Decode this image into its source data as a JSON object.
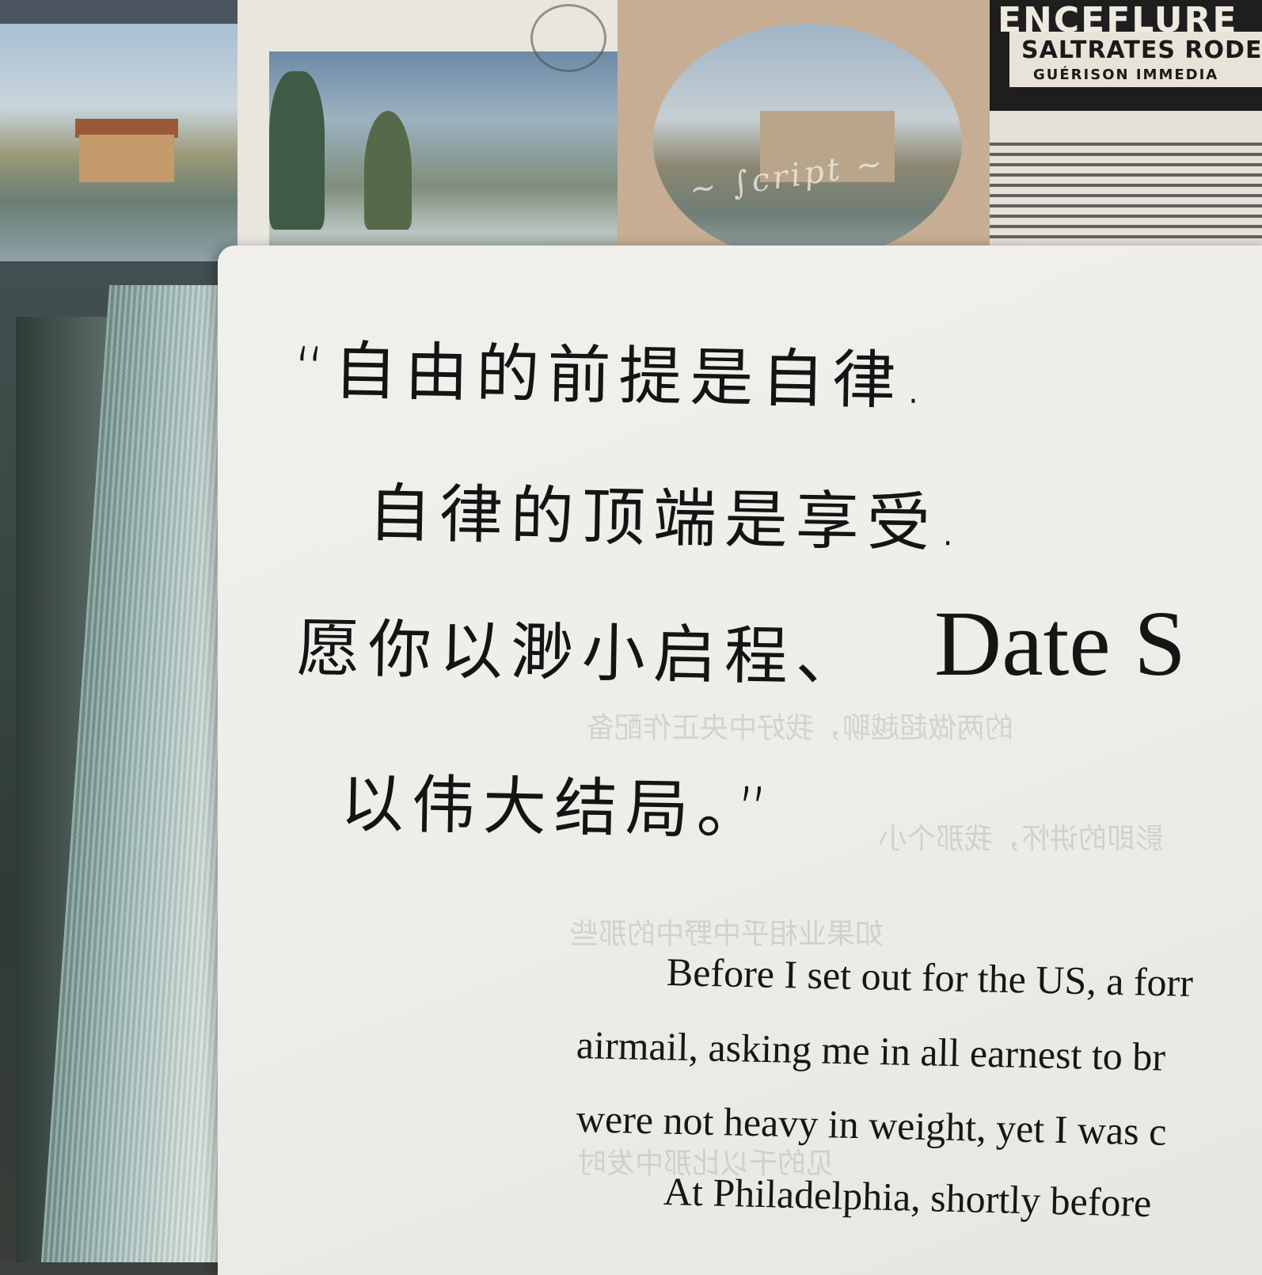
{
  "stamps": {
    "newspaper_headline_1": "ENCEFLURE",
    "newspaper_headline_2": "SALTRATES RODE",
    "newspaper_headline_3": "GUÉRISON IMMEDIA"
  },
  "handwriting": {
    "line1": "“自由的前提是自律.",
    "line2": "自律的顶端是享受.",
    "line3": "愿你以渺小启程、",
    "line4": "以伟大结局。”"
  },
  "book": {
    "heading": "Date S",
    "paragraph": [
      "Before I set out for the US, a forr",
      "airmail, asking me in all earnest to br",
      "were not heavy in weight, yet I was c",
      "At Philadelphia, shortly before"
    ],
    "ghost_lines": [
      "的两做超越聊，我好中央正作配备",
      "影即的讲怀，我那个小",
      "如果业相乎中野中的那些",
      "见的千以比那中发时"
    ]
  }
}
